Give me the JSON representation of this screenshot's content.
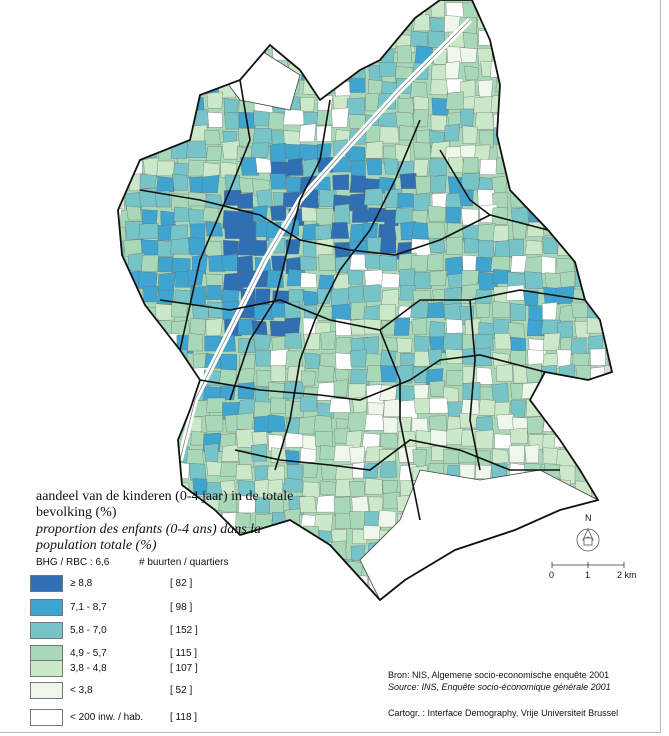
{
  "title_nl": "aandeel van de kinderen (0-4 jaar) in de totale bevolking (%)",
  "title_fr": "proportion des enfants (0-4 ans) dans la population totale (%)",
  "average_label": "BHG / RBC :  6,6",
  "count_header": "# buurten / quartiers",
  "legend": [
    {
      "range": "≥ 8,8",
      "count": "[ 82 ]",
      "color": "#2f6fb3"
    },
    {
      "range": "7,1 - 8,7",
      "count": "[ 98 ]",
      "color": "#3fa4cf"
    },
    {
      "range": "5,8 - 7,0",
      "count": "[ 152 ]",
      "color": "#76c4c8"
    },
    {
      "range": "4,9 - 5,7",
      "count": "[ 115 ]",
      "color": "#a9d8b8"
    },
    {
      "range": "3,8 - 4,8",
      "count": "[ 107 ]",
      "color": "#cbe8c9"
    },
    {
      "range": "< 3,8",
      "count": "[ 52 ]",
      "color": "#eef7e9"
    },
    {
      "range": "< 200 inw. / hab.",
      "count": "[ 118 ]",
      "color": "#ffffff"
    }
  ],
  "source_nl": "Bron: NIS, Algemene socio-economische enquête 2001",
  "source_fr": "Source: INS, Enquête socio-économique générale 2001",
  "credit": "Cartogr. :  Interface Demography, Vrije Universiteit Brussel",
  "north": "N",
  "scale": {
    "labels": [
      "0",
      "1",
      "2 km"
    ]
  }
}
